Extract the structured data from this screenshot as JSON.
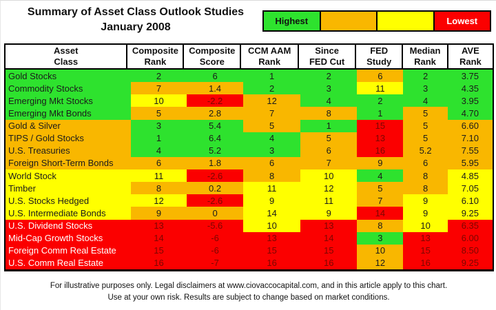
{
  "title": {
    "line1": "Summary of Asset Class Outlook Studies",
    "line2": "January 2008"
  },
  "legend": {
    "items": [
      {
        "label": "Highest",
        "color": "green"
      },
      {
        "label": "",
        "color": "orange"
      },
      {
        "label": "",
        "color": "yellow"
      },
      {
        "label": "Lowest",
        "color": "red"
      }
    ]
  },
  "colors": {
    "green": "#2EE22E",
    "orange": "#F9B700",
    "yellow": "#FFFF00",
    "red": "#FB0000"
  },
  "chart_data": {
    "type": "table",
    "title": "Summary of Asset Class Outlook Studies",
    "subtitle": "January 2008",
    "legend_note": "cell colors rank outlook from green (Highest) through orange and yellow to red (Lowest)",
    "columns": [
      "Asset Class",
      "Composite Rank",
      "Composite Score",
      "CCM AAM Rank",
      "Since FED Cut",
      "FED Study",
      "Median Rank",
      "AVE Rank"
    ],
    "header_lines": [
      "Asset\nClass",
      "Composite\nRank",
      "Composite\nScore",
      "CCM AAM\nRank",
      "Since\nFED Cut",
      "FED\nStudy",
      "Median\nRank",
      "AVE\nRank"
    ],
    "column_flex": [
      180,
      82,
      83,
      84,
      83,
      68,
      65,
      66
    ],
    "rows": [
      {
        "asset": "Gold Stocks",
        "tier": "green",
        "values": [
          "2",
          "6",
          "1",
          "2",
          "6",
          "2",
          "3.75"
        ],
        "cell_colors": [
          "green",
          "green",
          "green",
          "green",
          "orange",
          "green",
          "green"
        ]
      },
      {
        "asset": "Commodity Stocks",
        "tier": "green",
        "values": [
          "7",
          "1.4",
          "2",
          "3",
          "11",
          "3",
          "4.35"
        ],
        "cell_colors": [
          "orange",
          "orange",
          "green",
          "green",
          "yellow",
          "green",
          "green"
        ]
      },
      {
        "asset": "Emerging Mkt Stocks",
        "tier": "green",
        "values": [
          "10",
          "-2.2",
          "12",
          "4",
          "2",
          "4",
          "3.95"
        ],
        "cell_colors": [
          "yellow",
          "red",
          "orange",
          "green",
          "green",
          "green",
          "green"
        ]
      },
      {
        "asset": "Emerging Mkt Bonds",
        "tier": "green",
        "values": [
          "5",
          "2.8",
          "7",
          "8",
          "1",
          "5",
          "4.70"
        ],
        "cell_colors": [
          "orange",
          "orange",
          "orange",
          "orange",
          "green",
          "orange",
          "green"
        ]
      },
      {
        "asset": "Gold & Silver",
        "tier": "orange",
        "values": [
          "3",
          "5.4",
          "5",
          "1",
          "15",
          "5",
          "6.60"
        ],
        "cell_colors": [
          "green",
          "green",
          "orange",
          "green",
          "red",
          "orange",
          "orange"
        ]
      },
      {
        "asset": "TIPS / Gold Stocks",
        "tier": "orange",
        "values": [
          "1",
          "6.4",
          "4",
          "5",
          "13",
          "5",
          "7.10"
        ],
        "cell_colors": [
          "green",
          "green",
          "green",
          "orange",
          "red",
          "orange",
          "orange"
        ]
      },
      {
        "asset": "U.S. Treasuries",
        "tier": "orange",
        "values": [
          "4",
          "5.2",
          "3",
          "6",
          "16",
          "5.2",
          "7.55"
        ],
        "cell_colors": [
          "green",
          "green",
          "green",
          "orange",
          "red",
          "orange",
          "orange"
        ]
      },
      {
        "asset": "Foreign Short-Term Bonds",
        "tier": "orange",
        "values": [
          "6",
          "1.8",
          "6",
          "7",
          "9",
          "6",
          "5.95"
        ],
        "cell_colors": [
          "orange",
          "orange",
          "orange",
          "orange",
          "orange",
          "orange",
          "orange"
        ]
      },
      {
        "asset": "World Stock",
        "tier": "yellow",
        "values": [
          "11",
          "-2.6",
          "8",
          "10",
          "4",
          "8",
          "4.85"
        ],
        "cell_colors": [
          "yellow",
          "red",
          "orange",
          "yellow",
          "green",
          "orange",
          "yellow"
        ]
      },
      {
        "asset": "Timber",
        "tier": "yellow",
        "values": [
          "8",
          "0.2",
          "11",
          "12",
          "5",
          "8",
          "7.05"
        ],
        "cell_colors": [
          "orange",
          "orange",
          "yellow",
          "yellow",
          "orange",
          "orange",
          "yellow"
        ]
      },
      {
        "asset": "U.S. Stocks Hedged",
        "tier": "yellow",
        "values": [
          "12",
          "-2.6",
          "9",
          "11",
          "7",
          "9",
          "6.10"
        ],
        "cell_colors": [
          "yellow",
          "red",
          "yellow",
          "yellow",
          "orange",
          "yellow",
          "yellow"
        ]
      },
      {
        "asset": "U.S. Intermediate Bonds",
        "tier": "yellow",
        "values": [
          "9",
          "0",
          "14",
          "9",
          "14",
          "9",
          "9.25"
        ],
        "cell_colors": [
          "orange",
          "orange",
          "yellow",
          "yellow",
          "red",
          "yellow",
          "yellow"
        ]
      },
      {
        "asset": "U.S. Dividend Stocks",
        "tier": "red",
        "values": [
          "13",
          "-5.6",
          "10",
          "13",
          "8",
          "10",
          "6.35"
        ],
        "cell_colors": [
          "red",
          "red",
          "yellow",
          "red",
          "orange",
          "yellow",
          "red"
        ]
      },
      {
        "asset": "Mid-Cap Growth Stocks",
        "tier": "red",
        "values": [
          "14",
          "-6",
          "13",
          "14",
          "3",
          "13",
          "6.00"
        ],
        "cell_colors": [
          "red",
          "red",
          "red",
          "red",
          "green",
          "red",
          "red"
        ]
      },
      {
        "asset": "Foreign Comm Real Estate",
        "tier": "red",
        "values": [
          "15",
          "-6",
          "15",
          "15",
          "10",
          "15",
          "8.50"
        ],
        "cell_colors": [
          "red",
          "red",
          "red",
          "red",
          "orange",
          "red",
          "red"
        ]
      },
      {
        "asset": "U.S. Comm Real Estate",
        "tier": "red",
        "values": [
          "16",
          "-7",
          "16",
          "16",
          "12",
          "16",
          "9.25"
        ],
        "cell_colors": [
          "red",
          "red",
          "red",
          "red",
          "orange",
          "red",
          "red"
        ]
      }
    ]
  },
  "footer": {
    "line1": "For illustrative purposes only. Legal disclaimers at www.ciovaccocapital.com, and in this article apply to this chart.",
    "line2": "Use at your own risk. Results are subject to change based on market conditions."
  }
}
